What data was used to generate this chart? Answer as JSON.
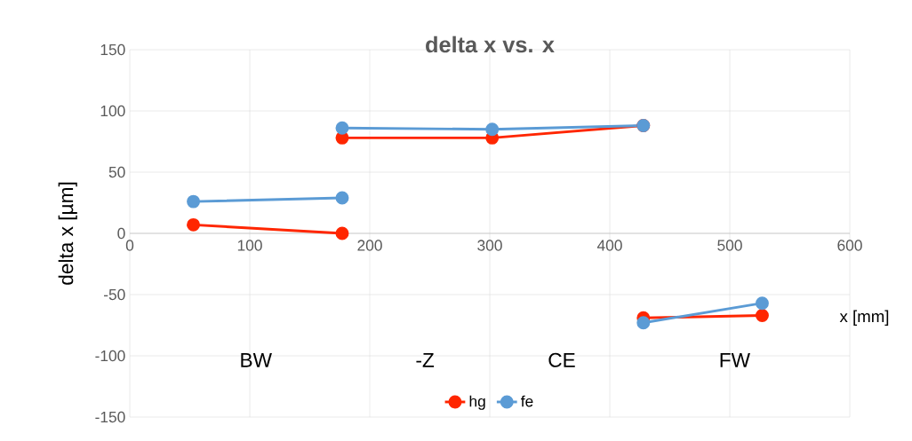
{
  "chart_data": {
    "type": "line",
    "title": "delta x vs. x",
    "xlabel": "x [mm]",
    "ylabel": "delta x [µm]",
    "xlim": [
      0,
      600
    ],
    "xticks": [
      0,
      100,
      200,
      300,
      400,
      500,
      600
    ],
    "ylim": [
      -150,
      150
    ],
    "yticks": [
      -150,
      -100,
      -50,
      0,
      50,
      100,
      150
    ],
    "grid": true,
    "legend": "bottom",
    "marker": "circle",
    "line_style": "solid",
    "series": [
      {
        "name": "hg",
        "color": "#ff2600",
        "x": [
          53,
          177,
          null,
          177,
          302,
          428,
          null,
          428,
          527
        ],
        "values": [
          7,
          0,
          null,
          78,
          78,
          88,
          null,
          -69,
          -67
        ]
      },
      {
        "name": "fe",
        "color": "#5b9bd5",
        "x": [
          53,
          177,
          null,
          177,
          302,
          428,
          null,
          428,
          527
        ],
        "values": [
          26,
          29,
          null,
          86,
          85,
          88,
          null,
          -73,
          -57
        ]
      }
    ],
    "annotations": [
      "BW",
      "-Z",
      "CE",
      "FW"
    ]
  }
}
